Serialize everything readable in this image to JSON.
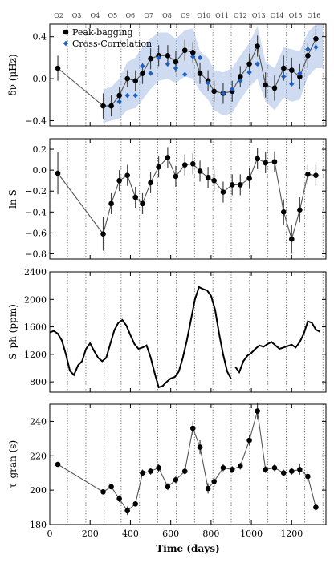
{
  "colors": {
    "peak": "#000000",
    "cross": "#1f5fbf",
    "band": "#9db8e3",
    "line": "#555555",
    "sph": "#000000"
  },
  "quarters": {
    "labels": [
      "Q2",
      "Q3",
      "Q4",
      "Q5",
      "Q6",
      "Q7",
      "Q8",
      "Q9",
      "Q10",
      "Q11",
      "Q12",
      "Q13",
      "Q14",
      "Q15",
      "Q16"
    ],
    "boundaries": [
      88,
      179,
      270,
      354,
      445,
      536,
      627,
      718,
      809,
      900,
      991,
      1082,
      1173,
      1265,
      1355
    ]
  },
  "shared_x": {
    "label": "Time (days)",
    "lim": [
      0,
      1370
    ],
    "ticks": [
      0,
      200,
      400,
      600,
      800,
      1000,
      1200
    ]
  },
  "chart_data": [
    {
      "type": "scatter",
      "panel": "freq-shift",
      "ylabel": "δν (μHz)",
      "ylim": [
        -0.45,
        0.52
      ],
      "yticks": [
        -0.4,
        0.0,
        0.4
      ],
      "ytick_labels": [
        "−0.4",
        "0.0",
        "0.4"
      ],
      "legend": {
        "position": "top-left",
        "entries": [
          "Peak-bagging",
          "Cross-Correlation"
        ]
      },
      "series": [
        {
          "name": "Peak-bagging",
          "x": [
            40,
            265,
            305,
            345,
            385,
            425,
            460,
            500,
            540,
            585,
            625,
            670,
            710,
            745,
            785,
            815,
            860,
            905,
            945,
            990,
            1030,
            1070,
            1115,
            1160,
            1200,
            1240,
            1280,
            1320
          ],
          "y": [
            0.1,
            -0.26,
            -0.26,
            -0.16,
            0.0,
            -0.02,
            0.05,
            0.19,
            0.22,
            0.22,
            0.16,
            0.27,
            0.25,
            0.05,
            -0.02,
            -0.12,
            -0.14,
            -0.12,
            0.02,
            0.14,
            0.31,
            -0.06,
            -0.09,
            0.1,
            0.08,
            0.02,
            0.22,
            0.38
          ],
          "err": [
            0.12,
            0.12,
            0.1,
            0.08,
            0.08,
            0.1,
            0.1,
            0.1,
            0.1,
            0.1,
            0.1,
            0.1,
            0.1,
            0.1,
            0.1,
            0.1,
            0.1,
            0.1,
            0.1,
            0.1,
            0.1,
            0.12,
            0.12,
            0.12,
            0.12,
            0.12,
            0.12,
            0.12
          ]
        },
        {
          "name": "Cross-Correlation",
          "x": [
            345,
            385,
            425,
            460,
            500,
            540,
            585,
            625,
            670,
            710,
            745,
            785,
            860,
            905,
            945,
            990,
            1030,
            1160,
            1200,
            1240,
            1280,
            1320
          ],
          "y": [
            -0.22,
            -0.16,
            -0.16,
            0.12,
            0.05,
            0.2,
            0.14,
            0.1,
            0.04,
            0.21,
            0.2,
            -0.04,
            -0.14,
            -0.1,
            -0.02,
            0.06,
            0.14,
            0.02,
            -0.05,
            0.05,
            0.28,
            0.3
          ]
        }
      ],
      "band": {
        "x": [
          265,
          305,
          345,
          385,
          425,
          460,
          500,
          540,
          585,
          625,
          670,
          710,
          745,
          785,
          815,
          860,
          905,
          945,
          990,
          1030,
          1070,
          1115,
          1160,
          1200,
          1240,
          1280,
          1320,
          1355
        ],
        "lower": [
          -0.42,
          -0.4,
          -0.38,
          -0.3,
          -0.28,
          -0.2,
          -0.1,
          -0.02,
          0.0,
          -0.04,
          0.02,
          0.0,
          -0.12,
          -0.2,
          -0.3,
          -0.35,
          -0.33,
          -0.2,
          -0.08,
          0.0,
          -0.22,
          -0.3,
          -0.18,
          -0.22,
          -0.2,
          0.02,
          0.1,
          0.1
        ],
        "upper": [
          -0.1,
          -0.08,
          0.0,
          0.16,
          0.2,
          0.3,
          0.38,
          0.44,
          0.44,
          0.38,
          0.46,
          0.48,
          0.26,
          0.2,
          0.08,
          0.06,
          0.1,
          0.22,
          0.34,
          0.5,
          0.16,
          0.1,
          0.3,
          0.28,
          0.26,
          0.44,
          0.52,
          0.52
        ]
      }
    },
    {
      "type": "scatter",
      "panel": "log-s",
      "ylabel": "ln S",
      "ylim": [
        -0.85,
        0.3
      ],
      "yticks": [
        -0.8,
        -0.6,
        -0.4,
        -0.2,
        0.0,
        0.2
      ],
      "ytick_labels": [
        "−0.8",
        "−0.6",
        "−0.4",
        "−0.2",
        "0.0",
        "0.2"
      ],
      "series": [
        {
          "name": "ln S",
          "x": [
            40,
            265,
            305,
            345,
            385,
            425,
            460,
            500,
            540,
            585,
            625,
            670,
            710,
            745,
            785,
            815,
            860,
            905,
            945,
            990,
            1030,
            1070,
            1115,
            1160,
            1200,
            1240,
            1280,
            1320
          ],
          "y": [
            -0.03,
            -0.61,
            -0.32,
            -0.1,
            -0.05,
            -0.26,
            -0.32,
            -0.12,
            0.03,
            0.12,
            -0.06,
            0.05,
            0.06,
            -0.01,
            -0.07,
            -0.1,
            -0.21,
            -0.14,
            -0.14,
            -0.08,
            0.11,
            0.07,
            0.08,
            -0.4,
            -0.66,
            -0.38,
            -0.04,
            -0.05
          ],
          "err": [
            0.2,
            0.16,
            0.1,
            0.1,
            0.1,
            0.1,
            0.1,
            0.1,
            0.1,
            0.1,
            0.1,
            0.1,
            0.1,
            0.1,
            0.1,
            0.1,
            0.1,
            0.1,
            0.1,
            0.1,
            0.1,
            0.1,
            0.1,
            0.12,
            0.14,
            0.12,
            0.1,
            0.1
          ]
        }
      ]
    },
    {
      "type": "line",
      "panel": "sph",
      "ylabel": "S_ph (ppm)",
      "ylim": [
        650,
        2400
      ],
      "yticks": [
        800,
        1200,
        1600,
        2000,
        2400
      ],
      "ytick_labels": [
        "800",
        "1200",
        "1600",
        "2000",
        "2400"
      ],
      "series": [
        {
          "name": "S_ph",
          "segments": [
            {
              "x": [
                0,
                20,
                40,
                60,
                80,
                100,
                120,
                140,
                160,
                180,
                200,
                220,
                240,
                260,
                280,
                300,
                320,
                340,
                360,
                380,
                400,
                420,
                440,
                460,
                480,
                500,
                520,
                540,
                560,
                580,
                600,
                620,
                640,
                660,
                680,
                700,
                720,
                740,
                760,
                780,
                800,
                820,
                840,
                860,
                880,
                900
              ],
              "y": [
                1520,
                1540,
                1500,
                1400,
                1200,
                960,
                900,
                1040,
                1100,
                1280,
                1360,
                1250,
                1150,
                1100,
                1150,
                1350,
                1550,
                1660,
                1700,
                1620,
                1480,
                1350,
                1280,
                1300,
                1330,
                1160,
                930,
                720,
                740,
                800,
                850,
                870,
                950,
                1150,
                1400,
                1700,
                2000,
                2180,
                2150,
                2130,
                2050,
                1850,
                1500,
                1200,
                950,
                840
              ]
            },
            {
              "x": [
                920,
                940,
                960,
                980,
                1000,
                1020,
                1040,
                1060,
                1080,
                1100,
                1120,
                1140,
                1160,
                1180,
                1200,
                1220,
                1240,
                1260,
                1280,
                1300,
                1320,
                1340
              ],
              "y": [
                1020,
                940,
                1100,
                1180,
                1220,
                1280,
                1330,
                1310,
                1350,
                1380,
                1330,
                1280,
                1300,
                1320,
                1340,
                1300,
                1380,
                1500,
                1680,
                1660,
                1560,
                1530
              ]
            }
          ]
        }
      ]
    },
    {
      "type": "line",
      "panel": "tau-gran",
      "ylabel": "τ_gran (s)",
      "ylim": [
        180,
        250
      ],
      "yticks": [
        180,
        200,
        220,
        240
      ],
      "ytick_labels": [
        "180",
        "200",
        "220",
        "240"
      ],
      "xlabel": "Time (days)",
      "series": [
        {
          "name": "τ_gran",
          "x": [
            40,
            265,
            305,
            345,
            385,
            425,
            460,
            500,
            540,
            585,
            625,
            670,
            710,
            745,
            785,
            815,
            860,
            905,
            945,
            990,
            1030,
            1070,
            1115,
            1160,
            1200,
            1240,
            1280,
            1320
          ],
          "y": [
            215,
            199,
            202,
            195,
            188,
            192,
            210,
            211,
            213,
            202,
            206,
            211,
            236,
            225,
            201,
            205,
            213,
            212,
            214,
            229,
            246,
            212,
            213,
            210,
            211,
            212,
            208,
            190
          ],
          "err": [
            0,
            1.5,
            1.5,
            2,
            2.5,
            1.5,
            2,
            2,
            2.5,
            2,
            2,
            2,
            4,
            4,
            3,
            3,
            2,
            2,
            2,
            3,
            5,
            2,
            2,
            2,
            2,
            3,
            3,
            2
          ]
        }
      ]
    }
  ]
}
